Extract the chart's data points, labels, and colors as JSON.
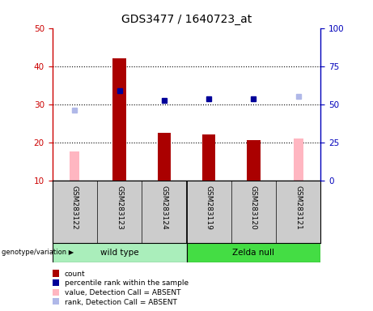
{
  "title": "GDS3477 / 1640723_at",
  "samples": [
    "GSM283122",
    "GSM283123",
    "GSM283124",
    "GSM283119",
    "GSM283120",
    "GSM283121"
  ],
  "group_labels": [
    "wild type",
    "Zelda null"
  ],
  "count_values": [
    null,
    42.0,
    22.5,
    22.0,
    20.5,
    null
  ],
  "absent_value_bars": [
    17.5,
    null,
    null,
    null,
    null,
    21.0
  ],
  "absent_rank_dots": [
    28.5,
    null,
    null,
    null,
    null,
    32.0
  ],
  "present_rank_dots": [
    null,
    33.5,
    31.0,
    31.5,
    31.5,
    null
  ],
  "ylim_left": [
    10,
    50
  ],
  "ylim_right": [
    0,
    100
  ],
  "yticks_left": [
    10,
    20,
    30,
    40,
    50
  ],
  "yticks_right": [
    0,
    25,
    50,
    75,
    100
  ],
  "left_tick_color": "#cc0000",
  "right_tick_color": "#0000bb",
  "count_color": "#aa0000",
  "absent_value_color": "#ffb6c1",
  "absent_rank_color": "#b0b8e8",
  "present_rank_color": "#000099",
  "label_row_bg": "#cccccc",
  "genotype_row_bg_wt": "#aaeebb",
  "genotype_row_bg_zn": "#44dd44",
  "legend_labels": [
    "count",
    "percentile rank within the sample",
    "value, Detection Call = ABSENT",
    "rank, Detection Call = ABSENT"
  ]
}
